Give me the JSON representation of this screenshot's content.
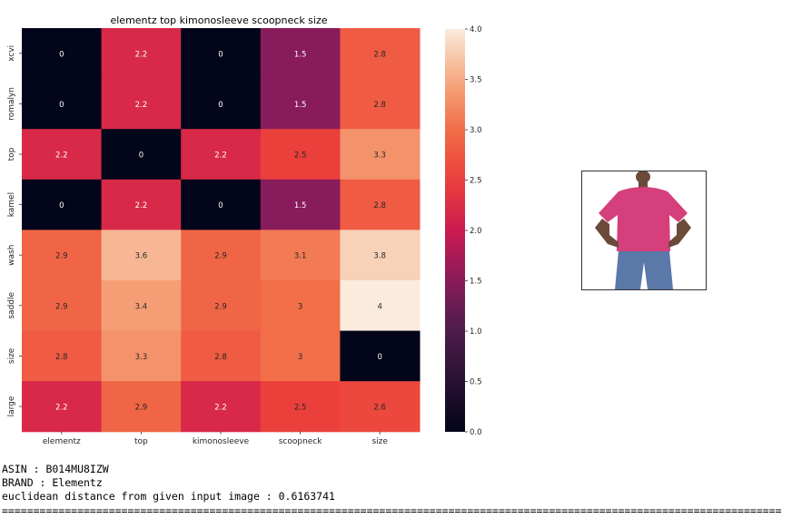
{
  "chart_data": {
    "type": "heatmap",
    "title": "elementz top kimonosleeve scoopneck size",
    "x_categories": [
      "elementz",
      "top",
      "kimonosleeve",
      "scoopneck",
      "size"
    ],
    "y_categories": [
      "xcvi",
      "romalyn",
      "top",
      "kamel",
      "wash",
      "saddle",
      "size",
      "large"
    ],
    "values": [
      [
        0,
        2.2,
        0,
        1.5,
        2.8
      ],
      [
        0,
        2.2,
        0,
        1.5,
        2.8
      ],
      [
        2.2,
        0,
        2.2,
        2.5,
        3.3
      ],
      [
        0,
        2.2,
        0,
        1.5,
        2.8
      ],
      [
        2.9,
        3.6,
        2.9,
        3.1,
        3.8
      ],
      [
        2.9,
        3.4,
        2.9,
        3,
        4
      ],
      [
        2.8,
        3.3,
        2.8,
        3,
        0
      ],
      [
        2.2,
        2.9,
        2.2,
        2.5,
        2.6
      ]
    ],
    "colorbar": {
      "min": 0,
      "max": 4,
      "ticks": [
        "0.0",
        "0.5",
        "1.0",
        "1.5",
        "2.0",
        "2.5",
        "3.0",
        "3.5",
        "4.0"
      ]
    },
    "colormap": "rocket"
  },
  "info": {
    "asin": "ASIN : B014MU8IZW",
    "brand": "BRAND : Elementz",
    "distance": "euclidean distance from given input image : 0.6163741",
    "separator": "============================================================================================================================"
  },
  "image": {
    "name": "product-thumbnail",
    "shirt_color": "#d43f7c"
  }
}
